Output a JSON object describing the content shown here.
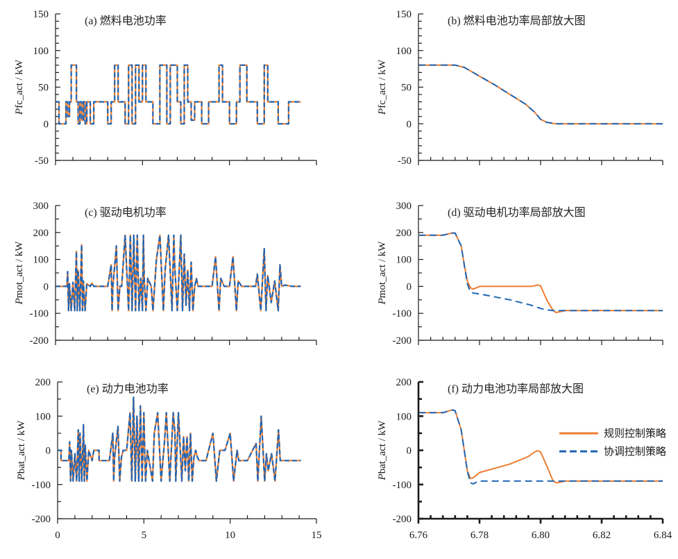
{
  "colors": {
    "rule": "#ED7D31",
    "coord": "#1F64B4",
    "axis": "#1a1a1a"
  },
  "legend": {
    "items": [
      {
        "label": "规则控制策略",
        "style": "solid",
        "color": "#ED7D31"
      },
      {
        "label": "协调控制策略",
        "style": "dashed",
        "color": "#1F64B4"
      }
    ],
    "placement": "right"
  },
  "chart_data": [
    {
      "id": "a",
      "type": "line",
      "title": "(a) 燃料电池功率",
      "ylabel_italic": "P",
      "ylabel": "fc_act / kW",
      "xlim": [
        0,
        15
      ],
      "ylim": [
        -50,
        150
      ],
      "yticks": [
        -50,
        0,
        50,
        100,
        150
      ],
      "xticks": [
        0,
        5,
        10,
        15
      ],
      "xtick_labels_shown": false,
      "series": [
        {
          "name": "规则控制策略",
          "x": [
            0,
            0.2,
            0.2,
            0.6,
            0.6,
            0.7,
            0.7,
            0.8,
            0.8,
            0.9,
            0.9,
            1.2,
            1.2,
            1.3,
            1.3,
            1.4,
            1.4,
            1.5,
            1.5,
            1.6,
            1.6,
            1.7,
            1.7,
            1.8,
            1.8,
            2.0,
            2.0,
            2.2,
            2.2,
            2.4,
            2.4,
            3.0,
            3.0,
            3.2,
            3.2,
            3.4,
            3.4,
            3.6,
            3.6,
            4.0,
            4.0,
            4.2,
            4.2,
            4.4,
            4.4,
            4.6,
            4.6,
            4.8,
            4.8,
            5.0,
            5.0,
            5.2,
            5.2,
            5.6,
            5.6,
            6.0,
            6.0,
            6.4,
            6.4,
            6.6,
            6.6,
            7.0,
            7.0,
            7.2,
            7.2,
            7.4,
            7.4,
            7.6,
            7.6,
            7.8,
            7.8,
            8.0,
            8.0,
            8.4,
            8.4,
            8.8,
            8.8,
            9.4,
            9.4,
            9.6,
            9.6,
            10.0,
            10.0,
            10.4,
            10.4,
            10.6,
            10.6,
            11.0,
            11.0,
            11.6,
            11.6,
            12.0,
            12.0,
            12.2,
            12.2,
            12.8,
            12.8,
            13.4,
            13.4,
            14.1
          ],
          "y": [
            30,
            30,
            0,
            0,
            30,
            30,
            10,
            10,
            30,
            30,
            80,
            80,
            30,
            30,
            0,
            0,
            30,
            30,
            5,
            5,
            30,
            30,
            0,
            0,
            30,
            30,
            0,
            0,
            30,
            30,
            30,
            30,
            0,
            0,
            30,
            30,
            80,
            80,
            30,
            30,
            0,
            0,
            80,
            80,
            0,
            0,
            80,
            80,
            30,
            30,
            80,
            80,
            30,
            30,
            0,
            0,
            80,
            80,
            0,
            0,
            80,
            80,
            30,
            30,
            0,
            0,
            80,
            80,
            30,
            30,
            5,
            5,
            30,
            30,
            0,
            0,
            30,
            30,
            80,
            80,
            30,
            30,
            0,
            0,
            30,
            30,
            80,
            80,
            30,
            30,
            0,
            0,
            80,
            80,
            30,
            30,
            0,
            0,
            30,
            30
          ]
        },
        {
          "name": "协调控制策略",
          "same_as": "规则控制策略"
        }
      ]
    },
    {
      "id": "b",
      "type": "line",
      "title": "(b) 燃料电池功率局部放大图",
      "ylabel_italic": "P",
      "ylabel": "fc_act / kW",
      "xlim": [
        6.76,
        6.84
      ],
      "ylim": [
        -50,
        150
      ],
      "yticks": [
        -50,
        0,
        50,
        100,
        150
      ],
      "xticks": [
        6.76,
        6.78,
        6.8,
        6.82,
        6.84
      ],
      "xtick_labels_shown": false,
      "series": [
        {
          "name": "规则控制策略",
          "x": [
            6.76,
            6.77,
            6.772,
            6.775,
            6.78,
            6.785,
            6.79,
            6.795,
            6.798,
            6.8,
            6.802,
            6.805,
            6.84
          ],
          "y": [
            80,
            80,
            80,
            77,
            65,
            53,
            40,
            27,
            16,
            6,
            2,
            0,
            0
          ]
        },
        {
          "name": "协调控制策略",
          "x": [
            6.76,
            6.77,
            6.772,
            6.775,
            6.78,
            6.785,
            6.79,
            6.795,
            6.798,
            6.8,
            6.802,
            6.805,
            6.84
          ],
          "y": [
            80,
            80,
            80,
            77,
            65,
            53,
            40,
            27,
            16,
            6,
            2,
            0,
            0
          ]
        }
      ]
    },
    {
      "id": "c",
      "type": "line",
      "title": "(c) 驱动电机功率",
      "ylabel_italic": "P",
      "ylabel": "mot_act / kW",
      "xlim": [
        0,
        15
      ],
      "ylim": [
        -200,
        300
      ],
      "yticks": [
        -200,
        -100,
        0,
        100,
        200,
        300
      ],
      "xticks": [
        0,
        5,
        10,
        15
      ],
      "xtick_labels_shown": false,
      "series": [
        {
          "name": "规则控制策略",
          "x": [
            0,
            0.65,
            0.7,
            0.75,
            0.8,
            0.9,
            1.0,
            1.1,
            1.2,
            1.25,
            1.3,
            1.4,
            1.5,
            1.55,
            1.6,
            1.7,
            1.8,
            2.0,
            2.1,
            2.2,
            3.0,
            3.2,
            3.25,
            3.3,
            3.5,
            3.6,
            3.7,
            3.8,
            4.0,
            4.2,
            4.3,
            4.4,
            4.5,
            4.6,
            4.7,
            4.8,
            4.9,
            5.0,
            5.05,
            5.1,
            5.2,
            5.3,
            5.5,
            5.6,
            5.8,
            6.0,
            6.2,
            6.3,
            6.5,
            6.7,
            6.8,
            6.85,
            7.0,
            7.2,
            7.3,
            7.4,
            7.5,
            7.6,
            7.7,
            7.8,
            7.9,
            8.0,
            8.1,
            8.2,
            8.4,
            8.6,
            9.0,
            9.2,
            9.4,
            9.5,
            9.7,
            10.0,
            10.2,
            10.4,
            10.5,
            10.7,
            11.0,
            11.5,
            11.6,
            11.8,
            12.0,
            12.1,
            12.2,
            12.4,
            12.6,
            12.8,
            12.9,
            13.0,
            13.2,
            13.6,
            14.1
          ],
          "y": [
            0,
            0,
            55,
            -90,
            10,
            -90,
            15,
            -90,
            130,
            -90,
            60,
            -90,
            155,
            -90,
            20,
            -90,
            10,
            0,
            12,
            0,
            0,
            80,
            -90,
            0,
            150,
            -90,
            0,
            0,
            190,
            -90,
            190,
            -90,
            190,
            -90,
            190,
            -90,
            30,
            -90,
            190,
            30,
            -90,
            30,
            0,
            -90,
            100,
            190,
            -90,
            60,
            190,
            -90,
            190,
            80,
            -90,
            190,
            -90,
            120,
            -70,
            60,
            -90,
            90,
            -90,
            0,
            30,
            0,
            0,
            0,
            0,
            110,
            -90,
            30,
            0,
            0,
            110,
            -90,
            20,
            0,
            0,
            0,
            45,
            -90,
            140,
            -90,
            40,
            -60,
            20,
            -90,
            80,
            0,
            5,
            0,
            0
          ]
        },
        {
          "name": "协调控制策略",
          "same_as": "规则控制策略"
        }
      ]
    },
    {
      "id": "d",
      "type": "line",
      "title": "(d) 驱动电机功率局部放大图",
      "ylabel_italic": "P",
      "ylabel": "mot_act / kW",
      "xlim": [
        6.76,
        6.84
      ],
      "ylim": [
        -200,
        300
      ],
      "yticks": [
        -200,
        -100,
        0,
        100,
        200,
        300
      ],
      "xticks": [
        6.76,
        6.78,
        6.8,
        6.82,
        6.84
      ],
      "xtick_labels_shown": false,
      "series": [
        {
          "name": "规则控制策略",
          "x": [
            6.76,
            6.768,
            6.771,
            6.772,
            6.774,
            6.775,
            6.776,
            6.777,
            6.778,
            6.78,
            6.79,
            6.797,
            6.799,
            6.8,
            6.802,
            6.804,
            6.805,
            6.806,
            6.808,
            6.84
          ],
          "y": [
            190,
            190,
            198,
            198,
            150,
            80,
            20,
            -5,
            -10,
            0,
            0,
            0,
            5,
            2,
            -50,
            -88,
            -97,
            -95,
            -90,
            -90
          ]
        },
        {
          "name": "协调控制策略",
          "x": [
            6.76,
            6.768,
            6.771,
            6.772,
            6.774,
            6.775,
            6.776,
            6.777,
            6.778,
            6.78,
            6.79,
            6.797,
            6.8,
            6.802,
            6.804,
            6.806,
            6.84
          ],
          "y": [
            190,
            190,
            198,
            198,
            150,
            80,
            10,
            -20,
            -25,
            -28,
            -50,
            -70,
            -82,
            -87,
            -90,
            -90,
            -90
          ]
        }
      ]
    },
    {
      "id": "e",
      "type": "line",
      "title": "(e) 动力电池功率",
      "ylabel_italic": "P",
      "ylabel": "bat_act / kW",
      "xlim": [
        0,
        15
      ],
      "ylim": [
        -200,
        200
      ],
      "yticks": [
        -200,
        -100,
        0,
        100,
        200
      ],
      "xticks": [
        0,
        5,
        10,
        15
      ],
      "xtick_labels_shown": true,
      "xtick_labels": [
        "0",
        "5",
        "10",
        "15"
      ],
      "series": [
        {
          "name": "规则控制策略",
          "x": [
            0,
            0.2,
            0.2,
            0.65,
            0.7,
            0.75,
            0.8,
            0.9,
            1.0,
            1.1,
            1.2,
            1.25,
            1.3,
            1.4,
            1.5,
            1.55,
            1.6,
            1.7,
            1.8,
            2.0,
            2.1,
            2.4,
            2.4,
            3.0,
            3.2,
            3.25,
            3.3,
            3.5,
            3.6,
            3.7,
            3.8,
            4.0,
            4.2,
            4.3,
            4.4,
            4.5,
            4.6,
            4.7,
            4.8,
            4.9,
            5.0,
            5.05,
            5.1,
            5.2,
            5.3,
            5.5,
            5.6,
            5.8,
            6.0,
            6.2,
            6.3,
            6.5,
            6.7,
            6.8,
            6.85,
            7.0,
            7.2,
            7.3,
            7.4,
            7.5,
            7.6,
            7.7,
            7.8,
            7.9,
            8.0,
            8.1,
            8.2,
            8.4,
            8.6,
            9.0,
            9.2,
            9.4,
            9.5,
            9.7,
            10.0,
            10.2,
            10.4,
            10.5,
            10.7,
            11.0,
            11.5,
            11.6,
            11.8,
            12.0,
            12.1,
            12.2,
            12.4,
            12.6,
            12.8,
            12.9,
            13.0,
            13.2,
            13.6,
            14.1
          ],
          "y": [
            0,
            0,
            -30,
            -30,
            25,
            -90,
            0,
            -90,
            -10,
            -90,
            60,
            -90,
            50,
            -90,
            75,
            -90,
            15,
            -90,
            0,
            -30,
            0,
            0,
            -30,
            -30,
            50,
            -90,
            -20,
            70,
            -90,
            -20,
            0,
            0,
            110,
            -90,
            155,
            -90,
            100,
            -90,
            130,
            -90,
            110,
            -10,
            -90,
            0,
            -30,
            -90,
            50,
            110,
            -90,
            30,
            110,
            -90,
            110,
            50,
            -90,
            110,
            -90,
            40,
            -60,
            40,
            -90,
            50,
            -90,
            -20,
            0,
            -20,
            -30,
            -30,
            -30,
            50,
            -90,
            0,
            0,
            0,
            50,
            -90,
            0,
            -30,
            -30,
            -30,
            20,
            -90,
            100,
            -90,
            -10,
            -60,
            -10,
            -90,
            60,
            -30,
            -30,
            -30,
            -30,
            -30
          ]
        },
        {
          "name": "协调控制策略",
          "same_as": "规则控制策略"
        }
      ]
    },
    {
      "id": "f",
      "type": "line",
      "title": "(f) 动力电池功率局部放大图",
      "ylabel_italic": "P",
      "ylabel": "bat_act / kW",
      "xlim": [
        6.76,
        6.84
      ],
      "ylim": [
        -200,
        200
      ],
      "yticks": [
        -200,
        -100,
        0,
        100,
        200
      ],
      "xticks": [
        6.76,
        6.78,
        6.8,
        6.82,
        6.84
      ],
      "xtick_labels_shown": true,
      "xtick_labels": [
        "6.76",
        "6.78",
        "6.80",
        "6.82",
        "6.84"
      ],
      "series": [
        {
          "name": "规则控制策略",
          "x": [
            6.76,
            6.768,
            6.771,
            6.772,
            6.774,
            6.775,
            6.776,
            6.777,
            6.778,
            6.78,
            6.79,
            6.796,
            6.798,
            6.799,
            6.8,
            6.802,
            6.804,
            6.805,
            6.806,
            6.808,
            6.84
          ],
          "y": [
            110,
            110,
            118,
            116,
            60,
            0,
            -60,
            -82,
            -80,
            -65,
            -40,
            -18,
            -5,
            -1,
            -5,
            -45,
            -88,
            -95,
            -94,
            -90,
            -90
          ]
        },
        {
          "name": "协调控制策略",
          "x": [
            6.76,
            6.768,
            6.771,
            6.772,
            6.774,
            6.775,
            6.776,
            6.777,
            6.778,
            6.779,
            6.78,
            6.84
          ],
          "y": [
            110,
            110,
            118,
            116,
            60,
            0,
            -60,
            -95,
            -98,
            -93,
            -90,
            -90
          ]
        }
      ]
    }
  ]
}
